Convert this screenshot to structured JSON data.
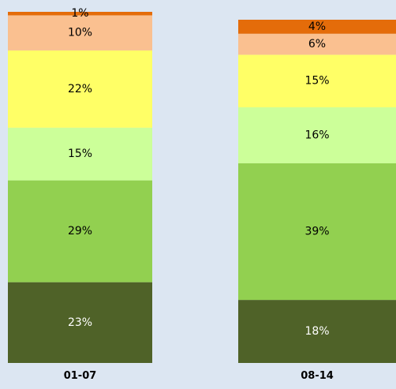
{
  "chart_data": {
    "type": "bar",
    "stacked": true,
    "normalized": true,
    "categories": [
      "01-07",
      "08-14"
    ],
    "series": [
      {
        "values": [
          23,
          18
        ],
        "labels": [
          "23%",
          "18%"
        ],
        "color": "#4f6228",
        "label_color": "#ffffff"
      },
      {
        "values": [
          29,
          39
        ],
        "labels": [
          "29%",
          "39%"
        ],
        "color": "#92d050",
        "label_color": "#000000"
      },
      {
        "values": [
          15,
          16
        ],
        "labels": [
          "15%",
          "16%"
        ],
        "color": "#ccff99",
        "label_color": "#000000"
      },
      {
        "values": [
          22,
          15
        ],
        "labels": [
          "22%",
          "15%"
        ],
        "color": "#ffff66",
        "label_color": "#000000"
      },
      {
        "values": [
          10,
          6
        ],
        "labels": [
          "10%",
          "6%"
        ],
        "color": "#fac090",
        "label_color": "#000000"
      },
      {
        "values": [
          1,
          4
        ],
        "labels": [
          "1%",
          "4%"
        ],
        "color": "#e46c0a",
        "label_color": "#000000"
      }
    ],
    "ylim": [
      0,
      100
    ],
    "grid": false,
    "legend": "none",
    "background": "#dce6f2"
  }
}
